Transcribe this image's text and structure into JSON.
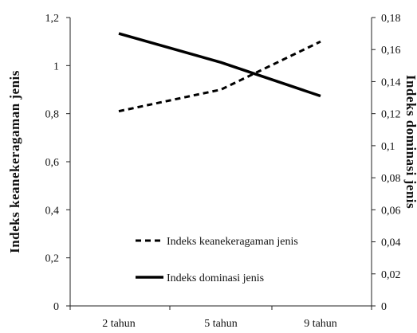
{
  "chart_data": {
    "type": "line",
    "categories": [
      "2 tahun",
      "5 tahun",
      "9 tahun"
    ],
    "ylabel_left": "Indeks keanekeragaman jenis",
    "ylabel_right": "Indeks dominasi jenis",
    "ylim_left": [
      0,
      1.2
    ],
    "ylim_right": [
      0,
      0.18
    ],
    "yticks_left": [
      "0",
      "0,2",
      "0,4",
      "0,6",
      "0,8",
      "1",
      "1,2"
    ],
    "yticks_right": [
      "0",
      "0,02",
      "0,04",
      "0,06",
      "0,08",
      "0,1",
      "0,12",
      "0,14",
      "0,16",
      "0,18"
    ],
    "grid": false,
    "legend_position": "bottom-center",
    "series": [
      {
        "name": "Indeks keanekeragaman jenis",
        "axis": "left",
        "style": "dashed",
        "color": "#000000",
        "values": [
          0.81,
          0.9,
          1.1
        ]
      },
      {
        "name": "Indeks dominasi jenis",
        "axis": "right",
        "style": "solid",
        "color": "#000000",
        "values": [
          0.17,
          0.152,
          0.131
        ]
      }
    ]
  }
}
